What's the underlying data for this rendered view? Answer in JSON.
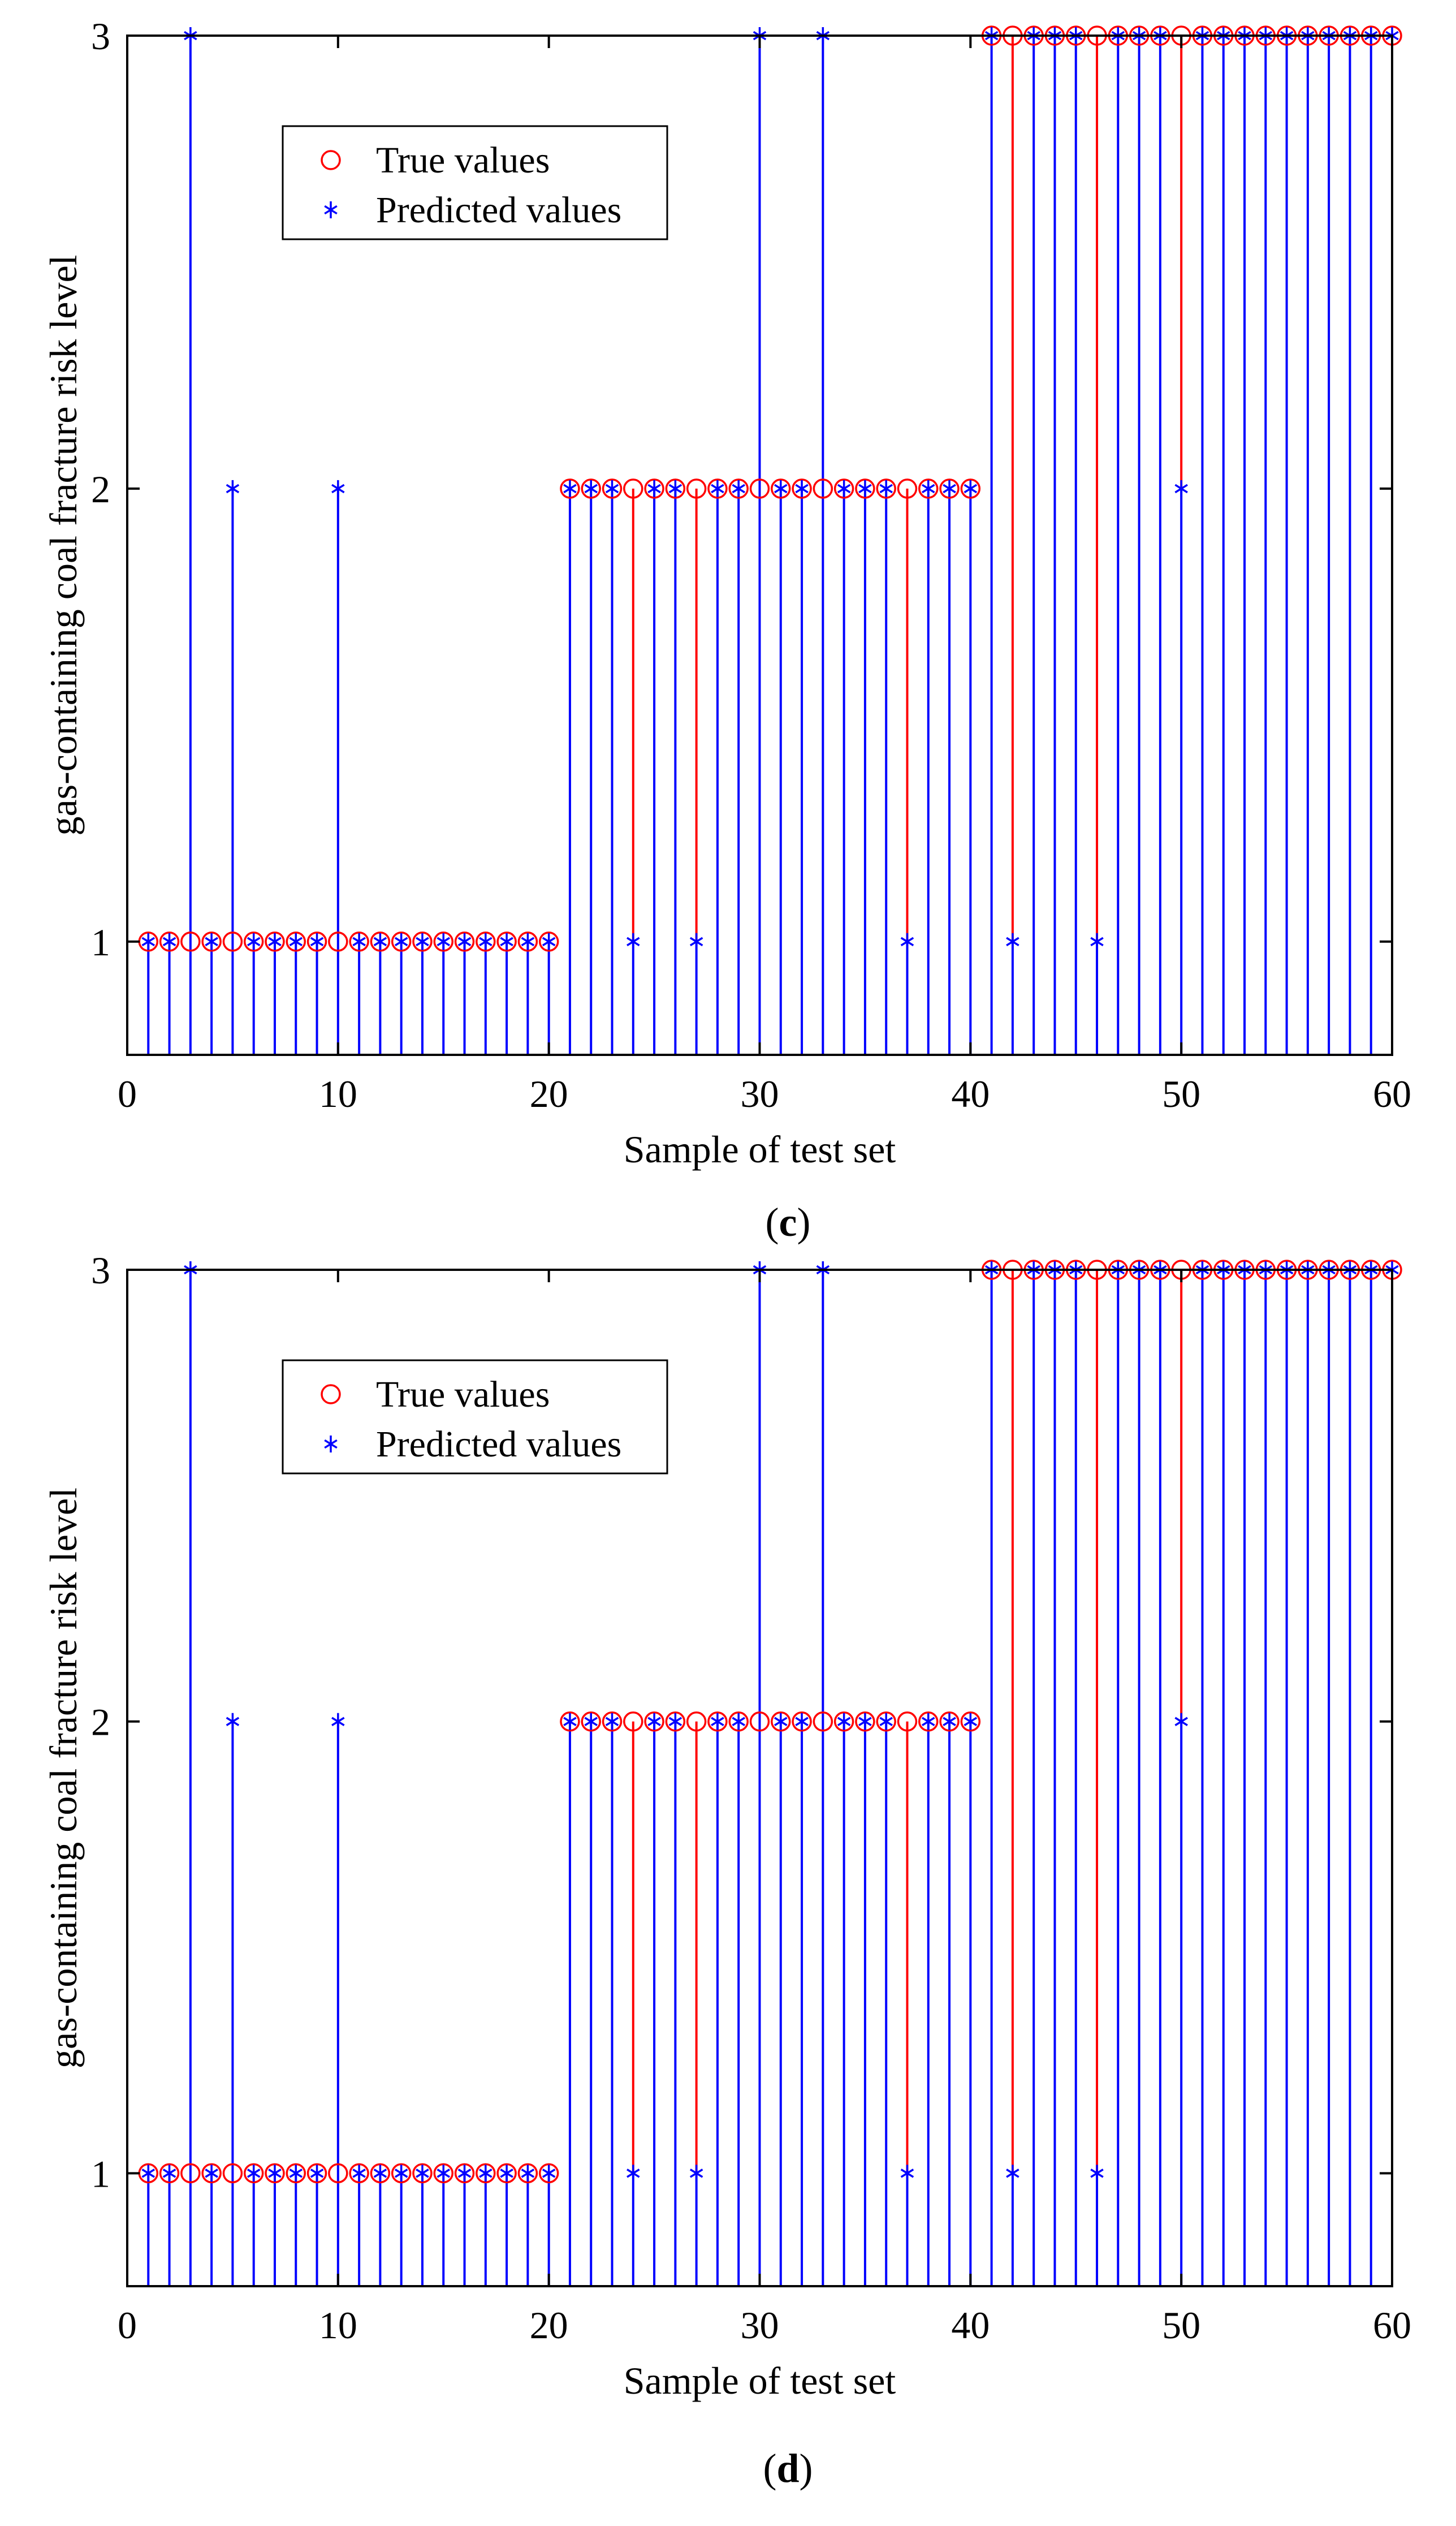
{
  "chart_data": [
    {
      "type": "stem",
      "panel_label": "(c)",
      "panel_letter": "c",
      "xlabel": "Sample of test set",
      "ylabel": "gas-containing coal fracture risk level",
      "xlim": [
        0,
        60
      ],
      "ylim": [
        0.75,
        3.0
      ],
      "xticks": [
        "0",
        "10",
        "20",
        "30",
        "40",
        "50",
        "60"
      ],
      "yticks": [
        "1",
        "2",
        "3"
      ],
      "legend": {
        "location": "top-left",
        "entries": [
          "True values",
          "Predicted values"
        ]
      },
      "series": [
        {
          "name": "True values",
          "color": "#ff0000",
          "marker": "circle",
          "x": [
            1,
            2,
            3,
            4,
            5,
            6,
            7,
            8,
            9,
            10,
            11,
            12,
            13,
            14,
            15,
            16,
            17,
            18,
            19,
            20,
            21,
            22,
            23,
            24,
            25,
            26,
            27,
            28,
            29,
            30,
            31,
            32,
            33,
            34,
            35,
            36,
            37,
            38,
            39,
            40,
            41,
            42,
            43,
            44,
            45,
            46,
            47,
            48,
            49,
            50,
            51,
            52,
            53,
            54,
            55,
            56,
            57,
            58,
            59,
            60
          ],
          "values": [
            1,
            1,
            1,
            1,
            1,
            1,
            1,
            1,
            1,
            1,
            1,
            1,
            1,
            1,
            1,
            1,
            1,
            1,
            1,
            1,
            2,
            2,
            2,
            2,
            2,
            2,
            2,
            2,
            2,
            2,
            2,
            2,
            2,
            2,
            2,
            2,
            2,
            2,
            2,
            2,
            3,
            3,
            3,
            3,
            3,
            3,
            3,
            3,
            3,
            3,
            3,
            3,
            3,
            3,
            3,
            3,
            3,
            3,
            3,
            3
          ]
        },
        {
          "name": "Predicted values",
          "color": "#0000ff",
          "marker": "asterisk",
          "x": [
            1,
            2,
            3,
            4,
            5,
            6,
            7,
            8,
            9,
            10,
            11,
            12,
            13,
            14,
            15,
            16,
            17,
            18,
            19,
            20,
            21,
            22,
            23,
            24,
            25,
            26,
            27,
            28,
            29,
            30,
            31,
            32,
            33,
            34,
            35,
            36,
            37,
            38,
            39,
            40,
            41,
            42,
            43,
            44,
            45,
            46,
            47,
            48,
            49,
            50,
            51,
            52,
            53,
            54,
            55,
            56,
            57,
            58,
            59,
            60
          ],
          "values": [
            1,
            1,
            3,
            1,
            2,
            1,
            1,
            1,
            1,
            2,
            1,
            1,
            1,
            1,
            1,
            1,
            1,
            1,
            1,
            1,
            2,
            2,
            2,
            1,
            2,
            2,
            1,
            2,
            2,
            3,
            2,
            2,
            3,
            2,
            2,
            2,
            1,
            2,
            2,
            2,
            3,
            1,
            3,
            3,
            3,
            1,
            3,
            3,
            3,
            2,
            3,
            3,
            3,
            3,
            3,
            3,
            3,
            3,
            3,
            3
          ]
        }
      ]
    },
    {
      "type": "stem",
      "panel_label": "(d)",
      "panel_letter": "d",
      "xlabel": "Sample of test set",
      "ylabel": "gas-containing coal fracture risk level",
      "xlim": [
        0,
        60
      ],
      "ylim": [
        0.75,
        3.0
      ],
      "xticks": [
        "0",
        "10",
        "20",
        "30",
        "40",
        "50",
        "60"
      ],
      "yticks": [
        "1",
        "2",
        "3"
      ],
      "legend": {
        "location": "top-left",
        "entries": [
          "True values",
          "Predicted values"
        ]
      },
      "series": [
        {
          "name": "True values",
          "color": "#ff0000",
          "marker": "circle",
          "x": [
            1,
            2,
            3,
            4,
            5,
            6,
            7,
            8,
            9,
            10,
            11,
            12,
            13,
            14,
            15,
            16,
            17,
            18,
            19,
            20,
            21,
            22,
            23,
            24,
            25,
            26,
            27,
            28,
            29,
            30,
            31,
            32,
            33,
            34,
            35,
            36,
            37,
            38,
            39,
            40,
            41,
            42,
            43,
            44,
            45,
            46,
            47,
            48,
            49,
            50,
            51,
            52,
            53,
            54,
            55,
            56,
            57,
            58,
            59,
            60
          ],
          "values": [
            1,
            1,
            1,
            1,
            1,
            1,
            1,
            1,
            1,
            1,
            1,
            1,
            1,
            1,
            1,
            1,
            1,
            1,
            1,
            1,
            2,
            2,
            2,
            2,
            2,
            2,
            2,
            2,
            2,
            2,
            2,
            2,
            2,
            2,
            2,
            2,
            2,
            2,
            2,
            2,
            3,
            3,
            3,
            3,
            3,
            3,
            3,
            3,
            3,
            3,
            3,
            3,
            3,
            3,
            3,
            3,
            3,
            3,
            3,
            3
          ]
        },
        {
          "name": "Predicted values",
          "color": "#0000ff",
          "marker": "asterisk",
          "x": [
            1,
            2,
            3,
            4,
            5,
            6,
            7,
            8,
            9,
            10,
            11,
            12,
            13,
            14,
            15,
            16,
            17,
            18,
            19,
            20,
            21,
            22,
            23,
            24,
            25,
            26,
            27,
            28,
            29,
            30,
            31,
            32,
            33,
            34,
            35,
            36,
            37,
            38,
            39,
            40,
            41,
            42,
            43,
            44,
            45,
            46,
            47,
            48,
            49,
            50,
            51,
            52,
            53,
            54,
            55,
            56,
            57,
            58,
            59,
            60
          ],
          "values": [
            1,
            1,
            3,
            1,
            2,
            1,
            1,
            1,
            1,
            2,
            1,
            1,
            1,
            1,
            1,
            1,
            1,
            1,
            1,
            1,
            2,
            2,
            2,
            1,
            2,
            2,
            1,
            2,
            2,
            3,
            2,
            2,
            3,
            2,
            2,
            2,
            1,
            2,
            2,
            2,
            3,
            1,
            3,
            3,
            3,
            1,
            3,
            3,
            3,
            2,
            3,
            3,
            3,
            3,
            3,
            3,
            3,
            3,
            3,
            3
          ]
        }
      ]
    }
  ]
}
